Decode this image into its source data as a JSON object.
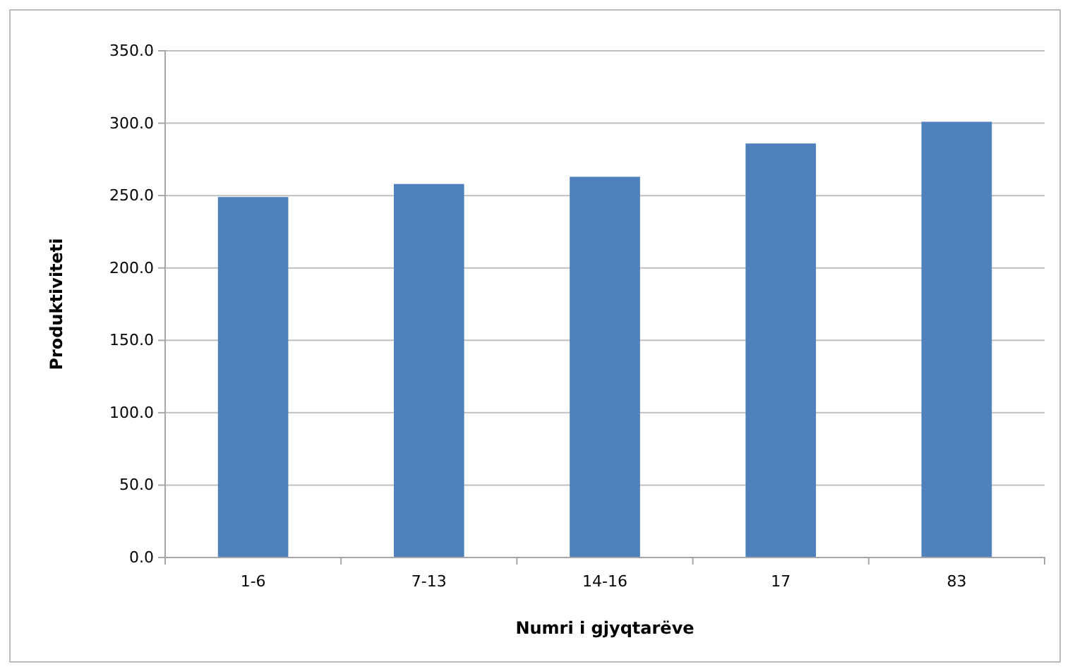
{
  "chart_data": {
    "type": "bar",
    "xlabel": "Numri i gjyqtarëve",
    "ylabel": "Produktiviteti",
    "categories": [
      "1-6",
      "7-13",
      "14-16",
      "17",
      "83"
    ],
    "values": [
      249,
      258,
      263,
      286,
      301
    ],
    "color": "#4f81bd",
    "ylim": [
      0,
      350
    ],
    "yticks": [
      {
        "value": 0,
        "label": "0.0"
      },
      {
        "value": 50,
        "label": "50.0"
      },
      {
        "value": 100,
        "label": "100.0"
      },
      {
        "value": 150,
        "label": "150.0"
      },
      {
        "value": 200,
        "label": "200.0"
      },
      {
        "value": 250,
        "label": "250.0"
      },
      {
        "value": 300,
        "label": "300.0"
      },
      {
        "value": 350,
        "label": "350.0"
      }
    ],
    "grid": "y"
  }
}
